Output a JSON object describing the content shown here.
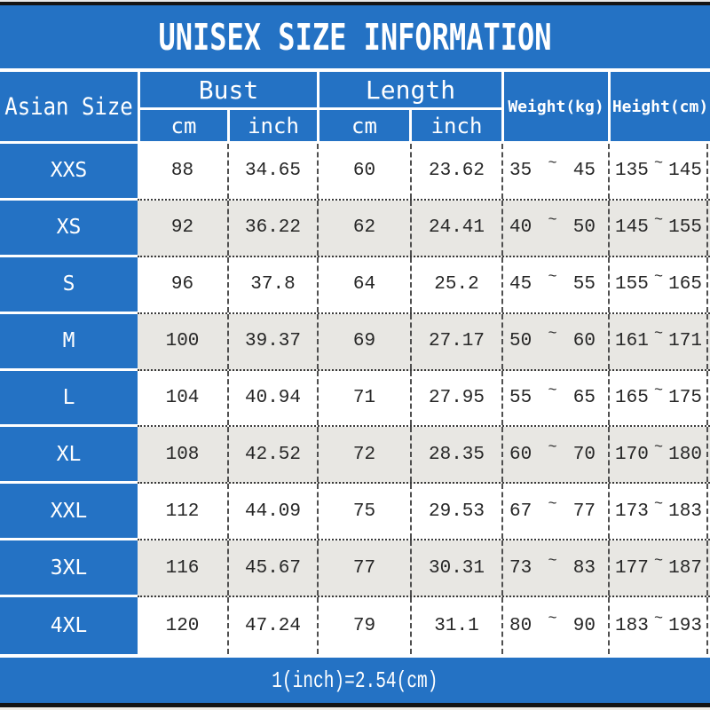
{
  "title": "UNISEX SIZE INFORMATION",
  "footer_note": "1(inch)=2.54(cm)",
  "colors": {
    "accent_blue": "#2472c4",
    "alt_row_gray": "#e8e7e3",
    "bar_black": "#141414",
    "text_dark": "#262626",
    "header_text": "#ffffff"
  },
  "table": {
    "tilde": "~",
    "col_asian_size": "Asian Size",
    "group_bust": "Bust",
    "group_length": "Length",
    "sub_cm": "cm",
    "sub_cm2": "cm",
    "sub_inch": "inch",
    "sub_inch2": "inch",
    "col_weight": "Weight(kg)",
    "col_height": "Height(cm)",
    "rows": [
      {
        "size": "XXS",
        "bust_cm": "88",
        "bust_inch": "34.65",
        "length_cm": "60",
        "length_inch": "23.62",
        "weight_min": "35",
        "weight_max": "45",
        "height_min": "135",
        "height_max": "145"
      },
      {
        "size": "XS",
        "bust_cm": "92",
        "bust_inch": "36.22",
        "length_cm": "62",
        "length_inch": "24.41",
        "weight_min": "40",
        "weight_max": "50",
        "height_min": "145",
        "height_max": "155"
      },
      {
        "size": "S",
        "bust_cm": "96",
        "bust_inch": "37.8",
        "length_cm": "64",
        "length_inch": "25.2",
        "weight_min": "45",
        "weight_max": "55",
        "height_min": "155",
        "height_max": "165"
      },
      {
        "size": "M",
        "bust_cm": "100",
        "bust_inch": "39.37",
        "length_cm": "69",
        "length_inch": "27.17",
        "weight_min": "50",
        "weight_max": "60",
        "height_min": "161",
        "height_max": "171"
      },
      {
        "size": "L",
        "bust_cm": "104",
        "bust_inch": "40.94",
        "length_cm": "71",
        "length_inch": "27.95",
        "weight_min": "55",
        "weight_max": "65",
        "height_min": "165",
        "height_max": "175"
      },
      {
        "size": "XL",
        "bust_cm": "108",
        "bust_inch": "42.52",
        "length_cm": "72",
        "length_inch": "28.35",
        "weight_min": "60",
        "weight_max": "70",
        "height_min": "170",
        "height_max": "180"
      },
      {
        "size": "XXL",
        "bust_cm": "112",
        "bust_inch": "44.09",
        "length_cm": "75",
        "length_inch": "29.53",
        "weight_min": "67",
        "weight_max": "77",
        "height_min": "173",
        "height_max": "183"
      },
      {
        "size": "3XL",
        "bust_cm": "116",
        "bust_inch": "45.67",
        "length_cm": "77",
        "length_inch": "30.31",
        "weight_min": "73",
        "weight_max": "83",
        "height_min": "177",
        "height_max": "187"
      },
      {
        "size": "4XL",
        "bust_cm": "120",
        "bust_inch": "47.24",
        "length_cm": "79",
        "length_inch": "31.1",
        "weight_min": "80",
        "weight_max": "90",
        "height_min": "183",
        "height_max": "193"
      }
    ]
  },
  "chart_data": {
    "type": "table",
    "title": "UNISEX SIZE INFORMATION",
    "columns": [
      "Asian Size",
      "Bust cm",
      "Bust inch",
      "Length cm",
      "Length inch",
      "Weight(kg)",
      "Height(cm)"
    ],
    "rows": [
      [
        "XXS",
        88,
        34.65,
        60,
        23.62,
        "35~45",
        "135~145"
      ],
      [
        "XS",
        92,
        36.22,
        62,
        24.41,
        "40~50",
        "145~155"
      ],
      [
        "S",
        96,
        37.8,
        64,
        25.2,
        "45~55",
        "155~165"
      ],
      [
        "M",
        100,
        39.37,
        69,
        27.17,
        "50~60",
        "161~171"
      ],
      [
        "L",
        104,
        40.94,
        71,
        27.95,
        "55~65",
        "165~175"
      ],
      [
        "XL",
        108,
        42.52,
        72,
        28.35,
        "60~70",
        "170~180"
      ],
      [
        "XXL",
        112,
        44.09,
        75,
        29.53,
        "67~77",
        "173~183"
      ],
      [
        "3XL",
        116,
        45.67,
        77,
        30.31,
        "73~83",
        "177~187"
      ],
      [
        "4XL",
        120,
        47.24,
        79,
        31.1,
        "80~90",
        "183~193"
      ]
    ],
    "footnote": "1(inch)=2.54(cm)"
  }
}
